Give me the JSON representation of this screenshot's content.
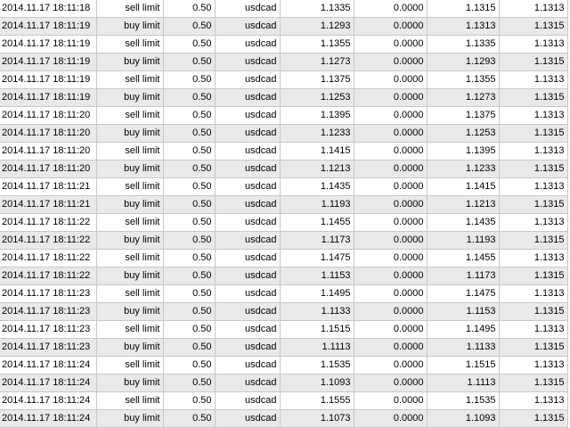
{
  "table": {
    "rows": [
      [
        "2014.11.17 18:11:18",
        "sell limit",
        "0.50",
        "usdcad",
        "1.1335",
        "0.0000",
        "1.1315",
        "1.1313"
      ],
      [
        "2014.11.17 18:11:19",
        "buy limit",
        "0.50",
        "usdcad",
        "1.1293",
        "0.0000",
        "1.1313",
        "1.1315"
      ],
      [
        "2014.11.17 18:11:19",
        "sell limit",
        "0.50",
        "usdcad",
        "1.1355",
        "0.0000",
        "1.1335",
        "1.1313"
      ],
      [
        "2014.11.17 18:11:19",
        "buy limit",
        "0.50",
        "usdcad",
        "1.1273",
        "0.0000",
        "1.1293",
        "1.1315"
      ],
      [
        "2014.11.17 18:11:19",
        "sell limit",
        "0.50",
        "usdcad",
        "1.1375",
        "0.0000",
        "1.1355",
        "1.1313"
      ],
      [
        "2014.11.17 18:11:19",
        "buy limit",
        "0.50",
        "usdcad",
        "1.1253",
        "0.0000",
        "1.1273",
        "1.1315"
      ],
      [
        "2014.11.17 18:11:20",
        "sell limit",
        "0.50",
        "usdcad",
        "1.1395",
        "0.0000",
        "1.1375",
        "1.1313"
      ],
      [
        "2014.11.17 18:11:20",
        "buy limit",
        "0.50",
        "usdcad",
        "1.1233",
        "0.0000",
        "1.1253",
        "1.1315"
      ],
      [
        "2014.11.17 18:11:20",
        "sell limit",
        "0.50",
        "usdcad",
        "1.1415",
        "0.0000",
        "1.1395",
        "1.1313"
      ],
      [
        "2014.11.17 18:11:20",
        "buy limit",
        "0.50",
        "usdcad",
        "1.1213",
        "0.0000",
        "1.1233",
        "1.1315"
      ],
      [
        "2014.11.17 18:11:21",
        "sell limit",
        "0.50",
        "usdcad",
        "1.1435",
        "0.0000",
        "1.1415",
        "1.1313"
      ],
      [
        "2014.11.17 18:11:21",
        "buy limit",
        "0.50",
        "usdcad",
        "1.1193",
        "0.0000",
        "1.1213",
        "1.1315"
      ],
      [
        "2014.11.17 18:11:22",
        "sell limit",
        "0.50",
        "usdcad",
        "1.1455",
        "0.0000",
        "1.1435",
        "1.1313"
      ],
      [
        "2014.11.17 18:11:22",
        "buy limit",
        "0.50",
        "usdcad",
        "1.1173",
        "0.0000",
        "1.1193",
        "1.1315"
      ],
      [
        "2014.11.17 18:11:22",
        "sell limit",
        "0.50",
        "usdcad",
        "1.1475",
        "0.0000",
        "1.1455",
        "1.1313"
      ],
      [
        "2014.11.17 18:11:22",
        "buy limit",
        "0.50",
        "usdcad",
        "1.1153",
        "0.0000",
        "1.1173",
        "1.1315"
      ],
      [
        "2014.11.17 18:11:23",
        "sell limit",
        "0.50",
        "usdcad",
        "1.1495",
        "0.0000",
        "1.1475",
        "1.1313"
      ],
      [
        "2014.11.17 18:11:23",
        "buy limit",
        "0.50",
        "usdcad",
        "1.1133",
        "0.0000",
        "1.1153",
        "1.1315"
      ],
      [
        "2014.11.17 18:11:23",
        "sell limit",
        "0.50",
        "usdcad",
        "1.1515",
        "0.0000",
        "1.1495",
        "1.1313"
      ],
      [
        "2014.11.17 18:11:23",
        "buy limit",
        "0.50",
        "usdcad",
        "1.1113",
        "0.0000",
        "1.1133",
        "1.1315"
      ],
      [
        "2014.11.17 18:11:24",
        "sell limit",
        "0.50",
        "usdcad",
        "1.1535",
        "0.0000",
        "1.1515",
        "1.1313"
      ],
      [
        "2014.11.17 18:11:24",
        "buy limit",
        "0.50",
        "usdcad",
        "1.1093",
        "0.0000",
        "1.1113",
        "1.1315"
      ],
      [
        "2014.11.17 18:11:24",
        "sell limit",
        "0.50",
        "usdcad",
        "1.1555",
        "0.0000",
        "1.1535",
        "1.1313"
      ],
      [
        "2014.11.17 18:11:24",
        "buy limit",
        "0.50",
        "usdcad",
        "1.1073",
        "0.0000",
        "1.1093",
        "1.1315"
      ]
    ]
  },
  "colors": {
    "alt_row": "#e9e9e9",
    "grid": "#c8c8c8"
  }
}
